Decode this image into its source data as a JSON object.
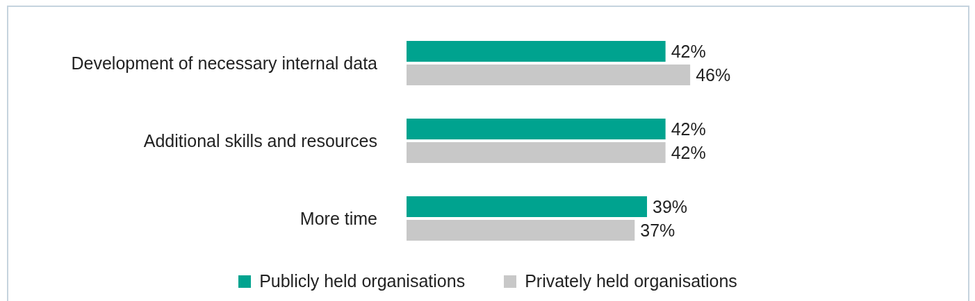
{
  "chart_data": {
    "type": "bar",
    "orientation": "horizontal",
    "categories": [
      "Development of necessary internal data",
      "Additional skills and resources",
      "More time"
    ],
    "series": [
      {
        "name": "Publicly held organisations",
        "color": "#00a38f",
        "values": [
          42,
          42,
          39
        ],
        "value_labels": [
          "42%",
          "42%",
          "39%"
        ]
      },
      {
        "name": "Privately held organisations",
        "color": "#c8c8c8",
        "values": [
          46,
          42,
          37
        ],
        "value_labels": [
          "46%",
          "42%",
          "37%"
        ]
      }
    ],
    "legend": "bottom",
    "grid": false
  }
}
